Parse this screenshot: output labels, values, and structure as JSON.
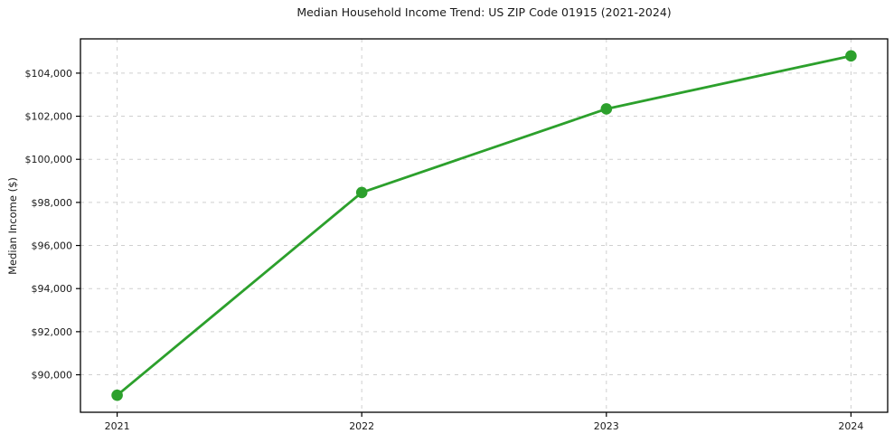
{
  "colors": {
    "line": "#2ca02c",
    "marker": "#2ca02c",
    "grid": "#cfcfcf",
    "axis": "#000000",
    "text": "#1a1a1a",
    "background": "#ffffff"
  },
  "chart_data": {
    "type": "line",
    "title": "Median Household Income Trend: US ZIP Code 01915 (2021-2024)",
    "xlabel": "",
    "ylabel": "Median Income ($)",
    "x": [
      2021,
      2022,
      2023,
      2024
    ],
    "series": [
      {
        "name": "Median Household Income",
        "values": [
          89050,
          98460,
          102340,
          104800
        ],
        "color": "#2ca02c",
        "marker": "circle"
      }
    ],
    "xticks": [
      2021,
      2022,
      2023,
      2024
    ],
    "xtick_labels": [
      "2021",
      "2022",
      "2023",
      "2024"
    ],
    "yticks": [
      90000,
      92000,
      94000,
      96000,
      98000,
      100000,
      102000,
      104000
    ],
    "ytick_labels": [
      "$90,000",
      "$92,000",
      "$94,000",
      "$96,000",
      "$98,000",
      "$100,000",
      "$102,000",
      "$104,000"
    ],
    "xlim": [
      2020.85,
      2024.15
    ],
    "ylim": [
      88260,
      105590
    ],
    "grid": true,
    "grid_style": "dashed",
    "legend": false
  }
}
